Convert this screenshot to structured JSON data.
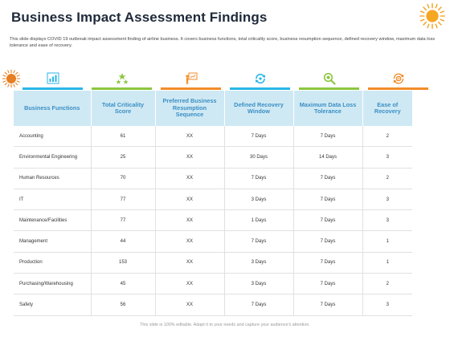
{
  "title": "Business Impact Assessment Findings",
  "description": "This slide displays COVID 19 outbreak  impact assessment finding of airline business. It covers business functions, total criticality score, business resumption sequence, defined recovery window, maximum data loss tolerance and ease of recovery.",
  "icons": [
    {
      "name": "bar-chart-icon",
      "bar_color": "#29b6e8"
    },
    {
      "name": "stars-icon",
      "bar_color": "#8cc63f"
    },
    {
      "name": "presentation-icon",
      "bar_color": "#f28c28"
    },
    {
      "name": "recovery-cycle-icon",
      "bar_color": "#29b6e8"
    },
    {
      "name": "magnifier-icon",
      "bar_color": "#8cc63f"
    },
    {
      "name": "gear-cycle-icon",
      "bar_color": "#f28c28"
    }
  ],
  "table": {
    "headers": [
      "Business Functions",
      "Total Criticality Score",
      "Preferred Business Resumption Sequence",
      "Defined Recovery Window",
      "Maximum Data Loss Tolerance",
      "Ease of Recovery"
    ],
    "rows": [
      [
        "Accounting",
        "61",
        "XX",
        "7 Days",
        "7 Days",
        "2"
      ],
      [
        "Environmental Engineering",
        "25",
        "XX",
        "30 Days",
        "14 Days",
        "3"
      ],
      [
        "Human Resources",
        "70",
        "XX",
        "7 Days",
        "7 Days",
        "2"
      ],
      [
        "IT",
        "77",
        "XX",
        "3 Days",
        "7 Days",
        "3"
      ],
      [
        "Maintenance/Facilities",
        "77",
        "XX",
        "1 Days",
        "7 Days",
        "3"
      ],
      [
        "Management",
        "44",
        "XX",
        "7 Days",
        "7 Days",
        "1"
      ],
      [
        "Production",
        "153",
        "XX",
        "3 Days",
        "7 Days",
        "1"
      ],
      [
        "Purchasing/Warehousing",
        "45",
        "XX",
        "3 Days",
        "7 Days",
        "2"
      ],
      [
        "Safety",
        "56",
        "XX",
        "7 Days",
        "7 Days",
        "3"
      ]
    ]
  },
  "footer": "This slide is 100% editable. Adapt it to your needs and capture your audience's attention.",
  "colors": {
    "accent_blue": "#29b6e8",
    "accent_green": "#8cc63f",
    "accent_orange": "#f28c28",
    "header_bg": "#cfe9f4",
    "header_text": "#3b8fc4",
    "sun": "#f39c12"
  }
}
